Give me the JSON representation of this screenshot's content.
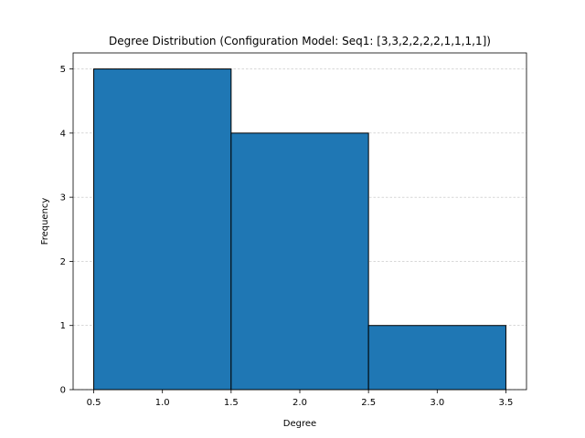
{
  "chart_data": {
    "type": "bar",
    "title": "Degree Distribution (Configuration Model: Seq1: [3,3,2,2,2,2,1,1,1,1])",
    "xlabel": "Degree",
    "ylabel": "Frequency",
    "bins": [
      {
        "start": 0.5,
        "end": 1.5,
        "value": 5
      },
      {
        "start": 1.5,
        "end": 2.5,
        "value": 4
      },
      {
        "start": 2.5,
        "end": 3.5,
        "value": 1
      }
    ],
    "xlim": [
      0.35,
      3.65
    ],
    "ylim": [
      0,
      5.25
    ],
    "xticks": [
      "0.5",
      "1.0",
      "1.5",
      "2.0",
      "2.5",
      "3.0",
      "3.5"
    ],
    "yticks": [
      "0",
      "1",
      "2",
      "3",
      "4",
      "5"
    ],
    "grid": "y-dashed",
    "bar_color": "#1f77b4",
    "edge_color": "#000000"
  }
}
